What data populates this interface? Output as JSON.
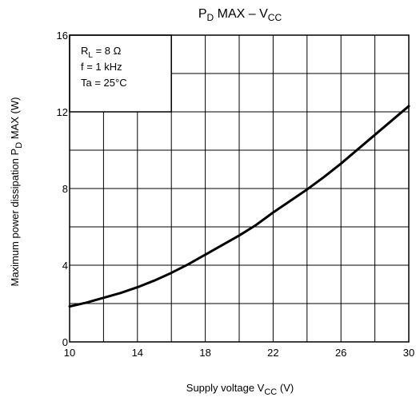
{
  "chart_data": {
    "type": "line",
    "title": {
      "main": "P",
      "sub1": "D",
      "middle": " MAX – V",
      "sub2": "CC"
    },
    "xlabel": {
      "text": "Supply voltage   V",
      "sub": "CC",
      "unit": "   (V)"
    },
    "ylabel": {
      "text": "Maximum power dissipation   P",
      "sub": "D",
      "unit": " MAX      (W)"
    },
    "xlim": [
      10,
      30
    ],
    "ylim": [
      0,
      16
    ],
    "x_ticks": [
      10,
      14,
      18,
      22,
      26,
      30
    ],
    "y_ticks": [
      0,
      4,
      8,
      12,
      16
    ],
    "grid": true,
    "annotations": [
      {
        "main": "R",
        "sub": "L",
        "rest": " = 8 Ω"
      },
      {
        "main": "f = 1 kHz",
        "sub": "",
        "rest": ""
      },
      {
        "main": "Ta = 25°C",
        "sub": "",
        "rest": ""
      }
    ],
    "series": [
      {
        "x": [
          10,
          11,
          12,
          13,
          14,
          15,
          16,
          17,
          18,
          19,
          20,
          21,
          22,
          23,
          24,
          25,
          26,
          27,
          28,
          29,
          30
        ],
        "values": [
          1.85,
          2.05,
          2.3,
          2.55,
          2.85,
          3.2,
          3.6,
          4.05,
          4.55,
          5.05,
          5.55,
          6.1,
          6.75,
          7.35,
          7.95,
          8.6,
          9.3,
          10.05,
          10.8,
          11.55,
          12.3
        ]
      }
    ]
  }
}
